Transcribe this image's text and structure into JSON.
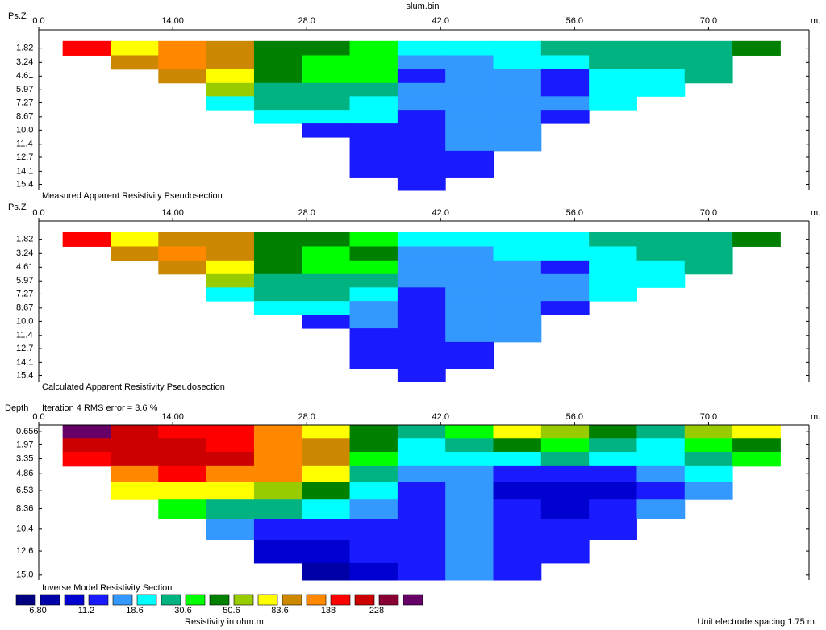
{
  "chart_data": [
    {
      "type": "contour",
      "title": "slum.bin",
      "ylabel": "Ps.Z",
      "xunit": "m.",
      "subtitle": "Measured Apparent Resistivity Pseudosection",
      "xlim": [
        0,
        80.5
      ],
      "ylim": [
        0,
        16
      ],
      "xticks": [
        {
          "value": 0,
          "label": "0.0"
        },
        {
          "value": 14,
          "label": "14.00"
        },
        {
          "value": 28,
          "label": "28.0"
        },
        {
          "value": 42,
          "label": "42.0"
        },
        {
          "value": 56,
          "label": "56.0"
        },
        {
          "value": 70,
          "label": "70.0"
        }
      ],
      "yticks": [
        1.82,
        3.24,
        4.61,
        5.97,
        7.27,
        8.67,
        {
          "value": 10,
          "label": "10.0"
        },
        11.4,
        12.7,
        14.1,
        15.4
      ],
      "x": [
        5,
        10,
        15,
        20,
        25,
        30,
        35,
        40,
        45,
        50,
        55,
        60,
        65,
        70,
        75
      ],
      "y": [
        1.82,
        3.24,
        4.61,
        5.97,
        7.27,
        8.67,
        10,
        11.4,
        12.7,
        14.1,
        15.4
      ],
      "z": [
        [
          157,
          73,
          122,
          95,
          45,
          45,
          35,
          21,
          21,
          21,
          27,
          27,
          27,
          27,
          45
        ],
        [
          null,
          95,
          122,
          95,
          45,
          35,
          35,
          16,
          16,
          21,
          21,
          27,
          27,
          27,
          null
        ],
        [
          null,
          null,
          95,
          73,
          45,
          35,
          35,
          12.7,
          16,
          16,
          12.7,
          21,
          21,
          27,
          null
        ],
        [
          null,
          null,
          null,
          57,
          27,
          27,
          27,
          16,
          16,
          16,
          12.7,
          21,
          21,
          null,
          null
        ],
        [
          null,
          null,
          null,
          21,
          27,
          27,
          21,
          16,
          16,
          16,
          16,
          21,
          null,
          null,
          null
        ],
        [
          null,
          null,
          null,
          null,
          21,
          21,
          21,
          12.7,
          16,
          16,
          12.7,
          null,
          null,
          null,
          null
        ],
        [
          null,
          null,
          null,
          null,
          null,
          12.7,
          12.7,
          12.7,
          16,
          16,
          null,
          null,
          null,
          null,
          null
        ],
        [
          null,
          null,
          null,
          null,
          null,
          null,
          12.7,
          12.7,
          16,
          16,
          null,
          null,
          null,
          null,
          null
        ],
        [
          null,
          null,
          null,
          null,
          null,
          null,
          12.7,
          12.7,
          12.7,
          null,
          null,
          null,
          null,
          null,
          null
        ],
        [
          null,
          null,
          null,
          null,
          null,
          null,
          12.7,
          12.7,
          12.7,
          null,
          null,
          null,
          null,
          null,
          null
        ],
        [
          null,
          null,
          null,
          null,
          null,
          null,
          null,
          12.7,
          null,
          null,
          null,
          null,
          null,
          null,
          null
        ]
      ]
    },
    {
      "type": "contour",
      "ylabel": "Ps.Z",
      "xunit": "m.",
      "subtitle": "Calculated Apparent Resistivity Pseudosection",
      "xlim": [
        0,
        80.5
      ],
      "ylim": [
        0,
        16
      ],
      "xticks": [
        {
          "value": 0,
          "label": "0.0"
        },
        {
          "value": 14,
          "label": "14.00"
        },
        {
          "value": 28,
          "label": "28.0"
        },
        {
          "value": 42,
          "label": "42.0"
        },
        {
          "value": 56,
          "label": "56.0"
        },
        {
          "value": 70,
          "label": "70.0"
        }
      ],
      "yticks": [
        1.82,
        3.24,
        4.61,
        5.97,
        7.27,
        8.67,
        {
          "value": 10,
          "label": "10.0"
        },
        11.4,
        12.7,
        14.1,
        15.4
      ],
      "x": [
        5,
        10,
        15,
        20,
        25,
        30,
        35,
        40,
        45,
        50,
        55,
        60,
        65,
        70,
        75
      ],
      "y": [
        1.82,
        3.24,
        4.61,
        5.97,
        7.27,
        8.67,
        10,
        11.4,
        12.7,
        14.1,
        15.4
      ],
      "z": [
        [
          157,
          73,
          95,
          95,
          45,
          45,
          35,
          21,
          21,
          21,
          21,
          27,
          27,
          27,
          45
        ],
        [
          null,
          95,
          122,
          95,
          45,
          35,
          45,
          16,
          16,
          21,
          21,
          21,
          27,
          27,
          null
        ],
        [
          null,
          null,
          95,
          73,
          45,
          35,
          35,
          16,
          16,
          16,
          12.7,
          21,
          21,
          27,
          null
        ],
        [
          null,
          null,
          null,
          57,
          27,
          27,
          27,
          16,
          16,
          16,
          16,
          21,
          21,
          null,
          null
        ],
        [
          null,
          null,
          null,
          21,
          27,
          27,
          21,
          12.7,
          16,
          16,
          16,
          21,
          null,
          null,
          null
        ],
        [
          null,
          null,
          null,
          null,
          21,
          21,
          16,
          12.7,
          16,
          16,
          12.7,
          null,
          null,
          null,
          null
        ],
        [
          null,
          null,
          null,
          null,
          null,
          12.7,
          16,
          12.7,
          16,
          16,
          null,
          null,
          null,
          null,
          null
        ],
        [
          null,
          null,
          null,
          null,
          null,
          null,
          12.7,
          12.7,
          16,
          16,
          null,
          null,
          null,
          null,
          null
        ],
        [
          null,
          null,
          null,
          null,
          null,
          null,
          12.7,
          12.7,
          12.7,
          null,
          null,
          null,
          null,
          null,
          null
        ],
        [
          null,
          null,
          null,
          null,
          null,
          null,
          12.7,
          12.7,
          12.7,
          null,
          null,
          null,
          null,
          null,
          null
        ],
        [
          null,
          null,
          null,
          null,
          null,
          null,
          null,
          12.7,
          null,
          null,
          null,
          null,
          null,
          null,
          null
        ]
      ]
    },
    {
      "type": "contour",
      "ylabel": "Depth",
      "annotation": "Iteration 4 RMS error = 3.6 %",
      "xunit": "m.",
      "subtitle": "Inverse Model Resistivity Section",
      "xlim": [
        0,
        80.5
      ],
      "ylim": [
        0,
        15.5
      ],
      "xticks": [
        {
          "value": 0,
          "label": "0.0"
        },
        {
          "value": 14,
          "label": "14.00"
        },
        {
          "value": 28,
          "label": "28.0"
        },
        {
          "value": 42,
          "label": "42.0"
        },
        {
          "value": 56,
          "label": "56.0"
        },
        {
          "value": 70,
          "label": "70.0"
        }
      ],
      "yticks": [
        0.656,
        1.97,
        3.35,
        4.86,
        6.53,
        8.36,
        10.4,
        12.6,
        {
          "value": 15,
          "label": "15.0"
        }
      ],
      "x": [
        5,
        10,
        15,
        20,
        25,
        30,
        35,
        40,
        45,
        50,
        55,
        60,
        65,
        70,
        75
      ],
      "y": [
        0.656,
        1.97,
        3.35,
        4.86,
        6.53,
        8.36,
        10.4,
        12.6,
        15
      ],
      "z": [
        [
          330,
          200,
          157,
          157,
          122,
          73,
          45,
          27,
          35,
          73,
          57,
          45,
          27,
          57,
          73
        ],
        [
          200,
          200,
          200,
          157,
          122,
          95,
          45,
          21,
          27,
          45,
          35,
          27,
          21,
          35,
          45
        ],
        [
          157,
          200,
          200,
          200,
          122,
          95,
          35,
          21,
          21,
          21,
          27,
          21,
          21,
          27,
          35
        ],
        [
          null,
          122,
          157,
          122,
          122,
          73,
          27,
          16,
          16,
          12.7,
          12.7,
          12.7,
          16,
          21,
          null
        ],
        [
          null,
          73,
          73,
          73,
          57,
          45,
          21,
          12.7,
          16,
          10,
          10,
          10,
          12.7,
          16,
          null
        ],
        [
          null,
          null,
          35,
          27,
          27,
          21,
          16,
          12.7,
          16,
          12.7,
          10,
          12.7,
          16,
          null,
          null
        ],
        [
          null,
          null,
          null,
          16,
          12.7,
          12.7,
          12.7,
          12.7,
          16,
          12.7,
          12.7,
          12.7,
          null,
          null,
          null
        ],
        [
          null,
          null,
          null,
          null,
          10,
          10,
          12.7,
          12.7,
          16,
          12.7,
          12.7,
          null,
          null,
          null,
          null
        ],
        [
          null,
          null,
          null,
          null,
          null,
          7.7,
          10,
          12.7,
          16,
          12.7,
          null,
          null,
          null,
          null,
          null
        ]
      ]
    }
  ],
  "colorbar": {
    "title": "Resistivity in ohm.m",
    "colors": [
      "#000080",
      "#0000a8",
      "#0000d0",
      "#1a1aff",
      "#3399ff",
      "#00ffff",
      "#00b380",
      "#00ff00",
      "#008000",
      "#99cc00",
      "#ffff00",
      "#cc8800",
      "#ff8800",
      "#ff0000",
      "#cc0000",
      "#880033",
      "#660066"
    ],
    "levels": [
      {
        "value": 6.8,
        "label": "6.80"
      },
      11.2,
      18.6,
      30.6,
      50.6,
      83.6,
      138,
      228
    ]
  },
  "footer": "Unit electrode spacing 1.75 m."
}
